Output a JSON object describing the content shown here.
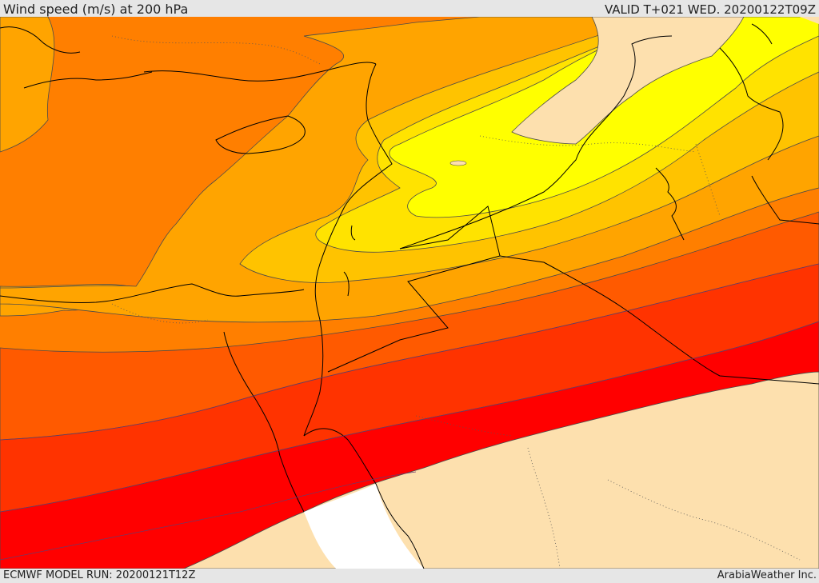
{
  "header": {
    "title": "Wind speed (m/s) at 200 hPa",
    "valid": "VALID T+021 WED. 20200122T09Z"
  },
  "footer": {
    "model_run": "ECMWF MODEL RUN: 20200121T12Z",
    "credit": "ArabiaWeather Inc."
  },
  "colors": {
    "calm": "#fde0ae",
    "band_1": "#ffff00",
    "band_2": "#ffe300",
    "band_3": "#ffc300",
    "band_4": "#ffa400",
    "band_5": "#ff7f00",
    "band_6": "#ff5a00",
    "band_7": "#ff3300",
    "band_8": "#ff0000",
    "no_data": "#ffffff",
    "coastline": "#000000",
    "contour": "#4a4a4a"
  }
}
